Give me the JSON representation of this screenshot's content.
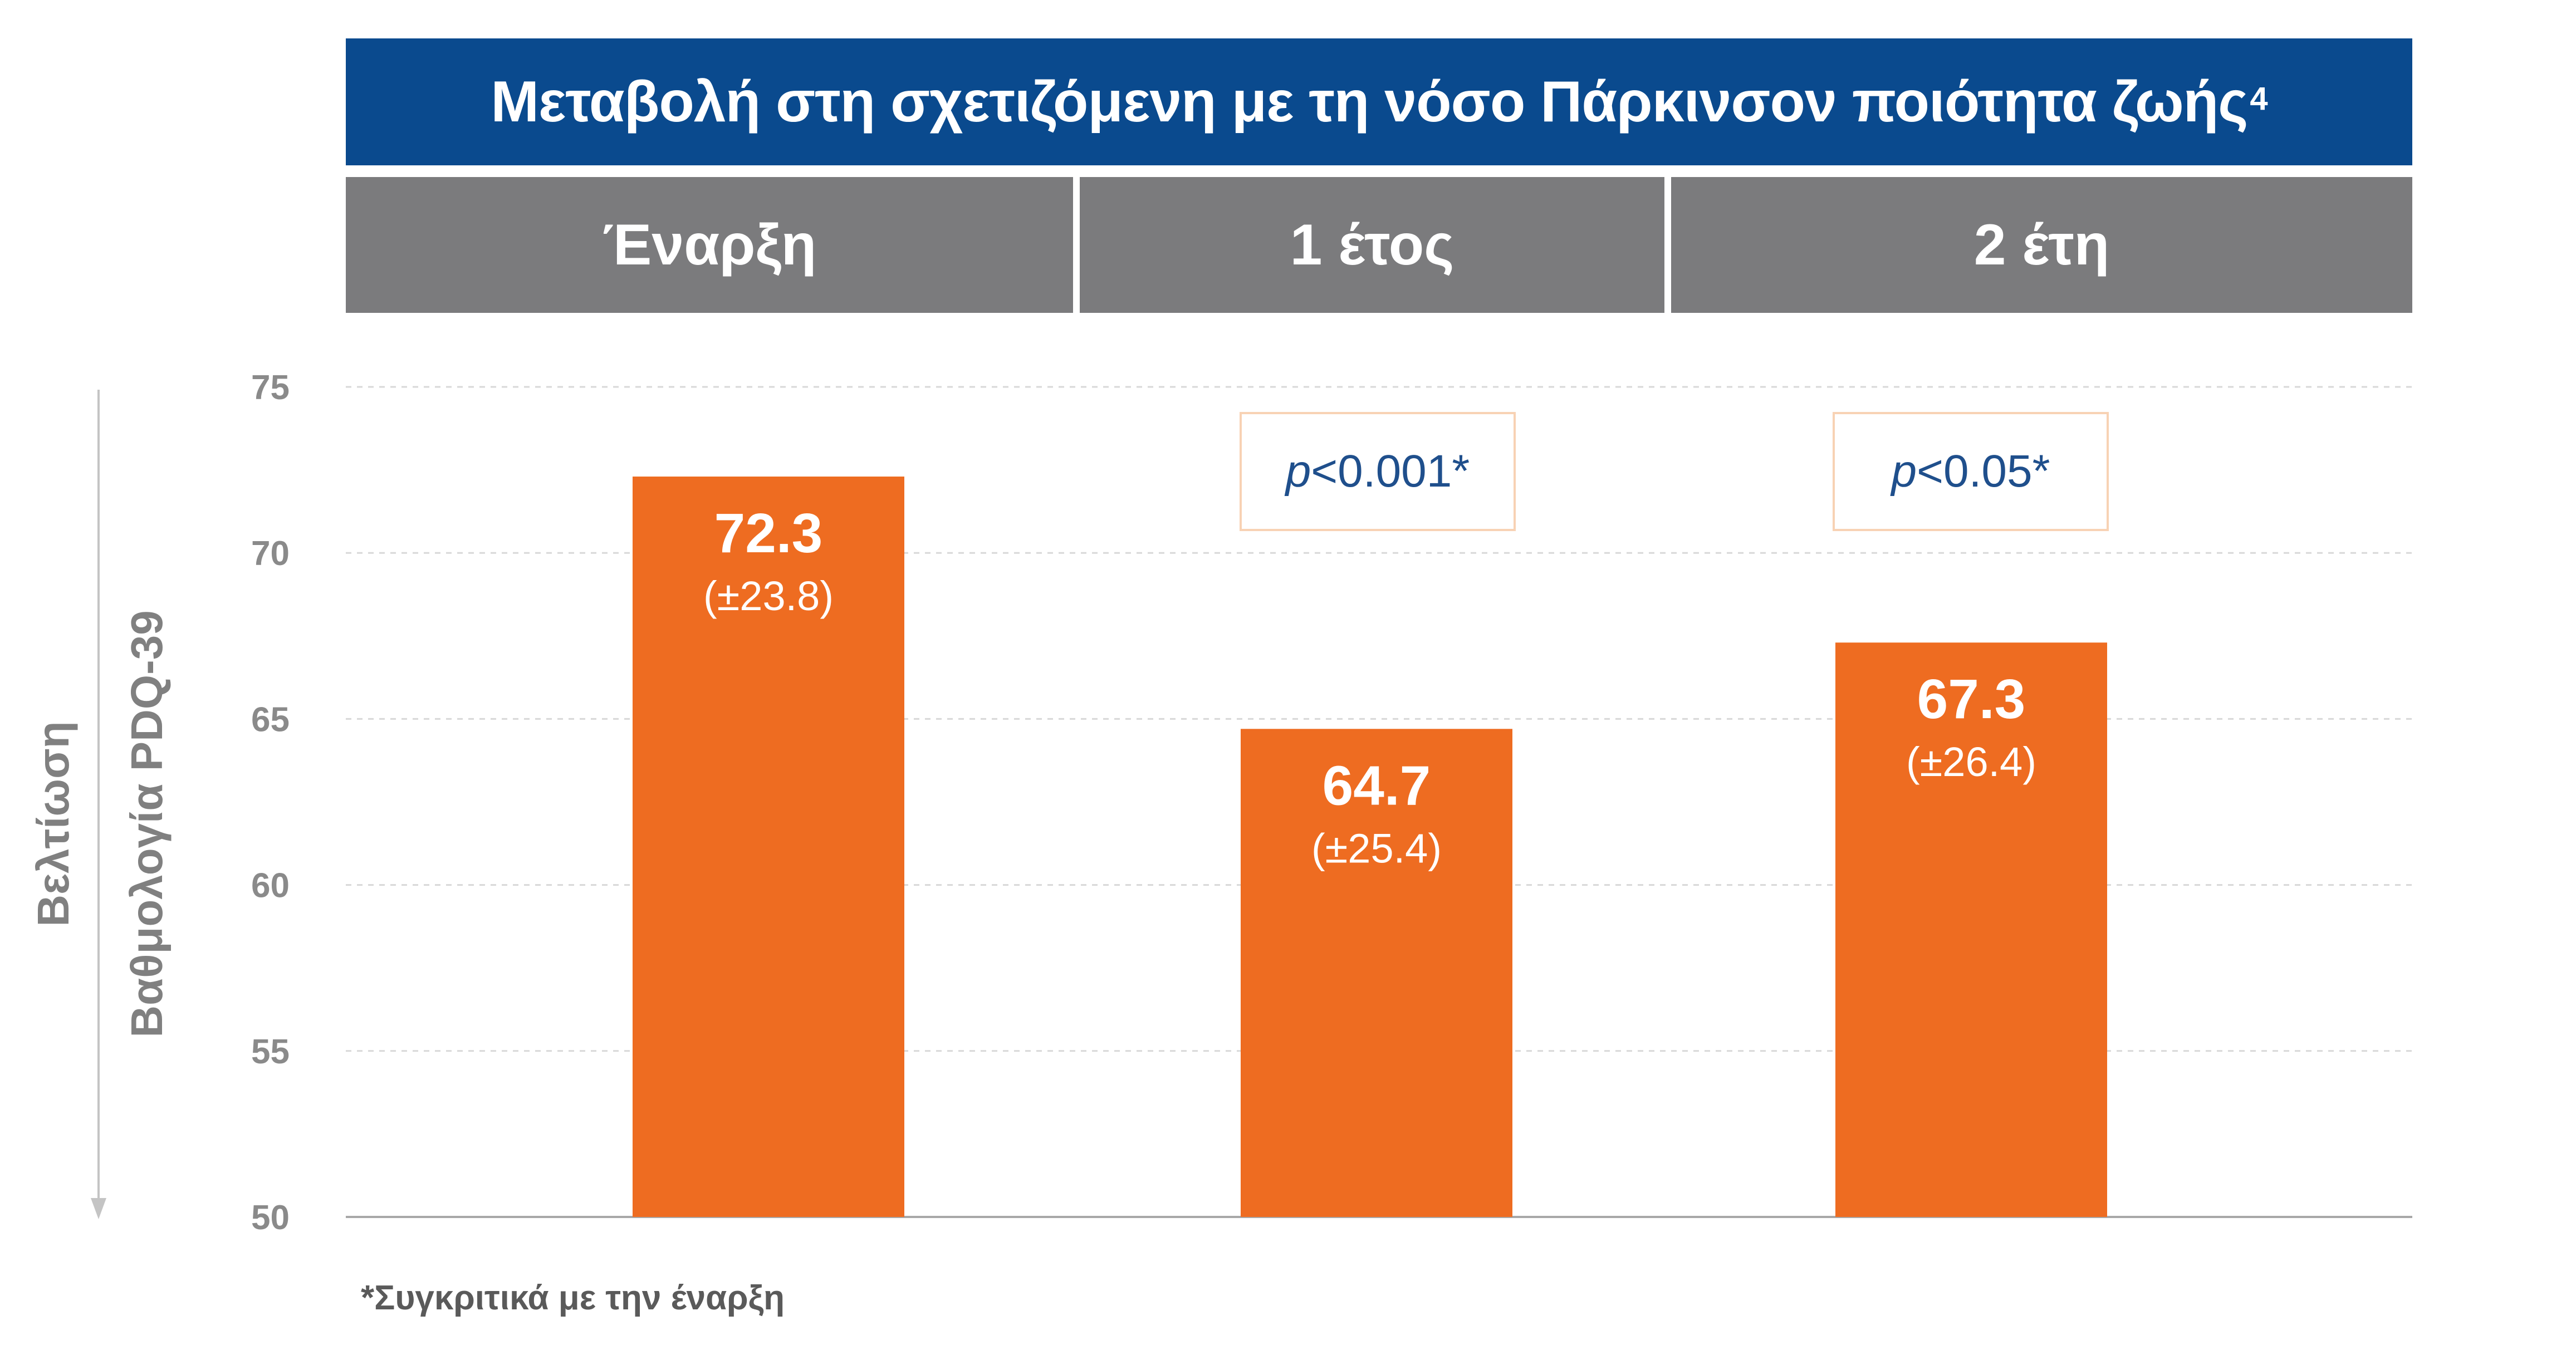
{
  "title": "Μεταβολή στη σχετιζόμενη με τη νόσο Πάρκινσον ποιότητα ζωής",
  "title_superscript": "4",
  "colors": {
    "title_bg": "#0a4a8e",
    "header_bg": "#7b7b7d",
    "bar": "#ee6c21",
    "pvalue_text": "#1f4f8c",
    "pvalue_border": "#f8d2b4"
  },
  "y_axis": {
    "label_line1": "Βελτίωση",
    "label_line2": "Βαθμολογία PDQ-39",
    "direction_arrow": "down"
  },
  "footnote": "*Συγκριτικά με την έναρξη",
  "chart_data": {
    "type": "bar",
    "categories": [
      "Έναρξη",
      "1 έτος",
      "2 έτη"
    ],
    "values": [
      72.3,
      64.7,
      67.3
    ],
    "value_labels": [
      "72.3",
      "64.7",
      "67.3"
    ],
    "error_labels": [
      "(±23.8)",
      "(±25.4)",
      "(±26.4)"
    ],
    "p_values": [
      null,
      {
        "prefix": "p",
        "rest": "<0.001*"
      },
      {
        "prefix": "p",
        "rest": "<0.05*"
      }
    ],
    "ylim": [
      50,
      75
    ],
    "yticks": [
      "50",
      "55",
      "60",
      "65",
      "70",
      "75"
    ],
    "grid": true,
    "title": "Μεταβολή στη σχετιζόμενη με τη νόσο Πάρκινσον ποιότητα ζωής",
    "xlabel": "",
    "ylabel": "Βαθμολογία PDQ-39"
  }
}
